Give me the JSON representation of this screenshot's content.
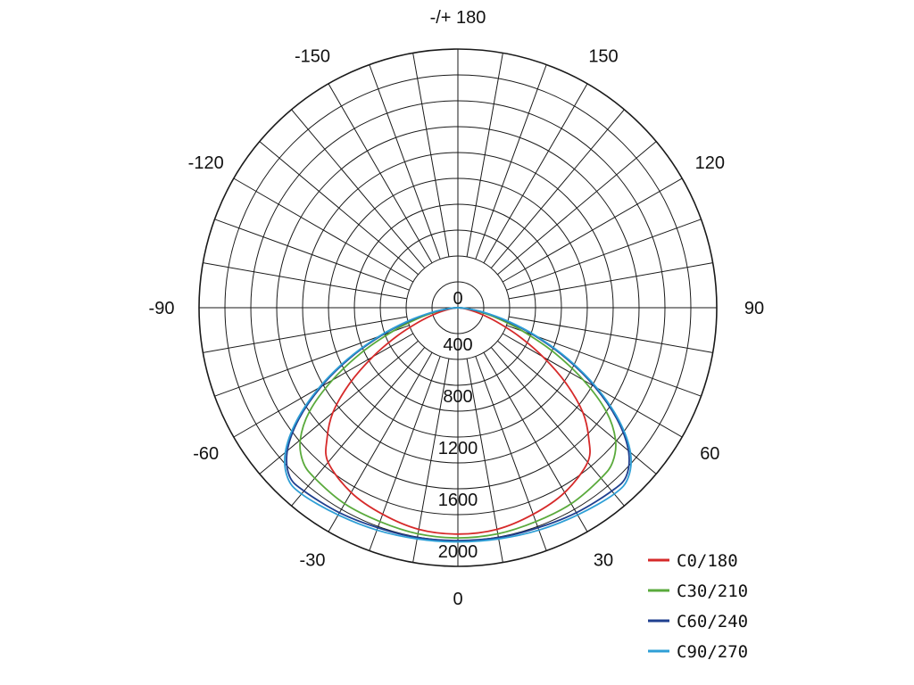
{
  "chart_data": {
    "type": "polar-line",
    "title": "",
    "angle_unit": "degrees",
    "radial_max": 2000,
    "radial_ticks": [
      0,
      400,
      800,
      1200,
      1600,
      2000
    ],
    "radial_tick_labels": [
      "0",
      "400",
      "800",
      "1200",
      "1600",
      "2000"
    ],
    "angle_tick_labels": [
      {
        "angle": 180,
        "label": "-/+ 180"
      },
      {
        "angle": -150,
        "label": "-150"
      },
      {
        "angle": 150,
        "label": "150"
      },
      {
        "angle": -120,
        "label": "-120"
      },
      {
        "angle": 120,
        "label": "120"
      },
      {
        "angle": -90,
        "label": "-90"
      },
      {
        "angle": 90,
        "label": "90"
      },
      {
        "angle": -60,
        "label": "-60"
      },
      {
        "angle": 60,
        "label": "60"
      },
      {
        "angle": -30,
        "label": "-30"
      },
      {
        "angle": 30,
        "label": "30"
      },
      {
        "angle": 0,
        "label": "0"
      }
    ],
    "grid": true,
    "legend_position": "bottom-right",
    "angles": [
      0,
      10,
      20,
      30,
      40,
      45,
      50,
      55,
      60,
      65,
      70,
      75,
      80,
      85,
      90
    ],
    "series": [
      {
        "name": "C0/180",
        "color": "#d62a2a",
        "values": [
          1750,
          1740,
          1700,
          1650,
          1560,
          1430,
          1260,
          1020,
          760,
          520,
          320,
          180,
          80,
          25,
          0
        ]
      },
      {
        "name": "C30/210",
        "color": "#5aaa3c",
        "values": [
          1780,
          1775,
          1760,
          1750,
          1720,
          1690,
          1590,
          1400,
          1120,
          820,
          540,
          320,
          160,
          55,
          0
        ]
      },
      {
        "name": "C60/240",
        "color": "#1f3f8f",
        "values": [
          1800,
          1805,
          1810,
          1830,
          1850,
          1840,
          1720,
          1500,
          1220,
          920,
          630,
          380,
          190,
          60,
          0
        ]
      },
      {
        "name": "C90/270",
        "color": "#2e9fd6",
        "values": [
          1810,
          1815,
          1830,
          1850,
          1880,
          1860,
          1740,
          1520,
          1240,
          940,
          650,
          400,
          200,
          65,
          0
        ]
      }
    ]
  }
}
